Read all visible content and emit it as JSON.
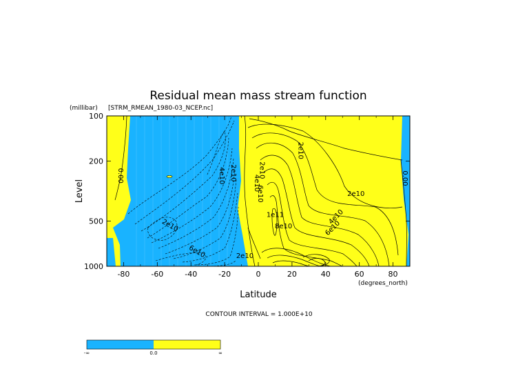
{
  "chart_data": {
    "type": "heatmap",
    "title": "Residual mean mass stream function",
    "dataset": "[STRM_RMEAN_1980-03_NCEP.nc]",
    "xlabel": "Latitude",
    "xunits": "(degrees_north)",
    "ylabel": "Level",
    "yunits": "(millibar)",
    "xlim": [
      -90,
      90
    ],
    "ylim": [
      1000,
      100
    ],
    "yscale": "log",
    "x_ticks": [
      -80,
      -60,
      -40,
      -20,
      0,
      20,
      40,
      60,
      80
    ],
    "x_tick_labels": [
      "-80",
      "-60",
      "-40",
      "-20",
      "0",
      "20",
      "40",
      "60",
      "80"
    ],
    "y_ticks": [
      100,
      200,
      500,
      1000
    ],
    "y_tick_labels": [
      "100",
      "200",
      "500",
      "1000"
    ],
    "contour_interval": "CONTOUR INTERVAL = 1.000E+10",
    "contour_labels": [
      {
        "text": "2e10",
        "lat": 24,
        "lev": 170
      },
      {
        "text": "2e10",
        "lat": 58,
        "lev": 340
      },
      {
        "text": "1e11",
        "lat": 10,
        "lev": 470
      },
      {
        "text": "4e10",
        "lat": 47,
        "lev": 480
      },
      {
        "text": "6e10",
        "lat": 45,
        "lev": 570
      },
      {
        "text": "8e10",
        "lat": 15,
        "lev": 560
      },
      {
        "text": "2e10",
        "lat": 1,
        "lev": 230
      },
      {
        "text": "4e10",
        "lat": -2,
        "lev": 280
      },
      {
        "text": "6e10",
        "lat": 0,
        "lev": 330
      },
      {
        "text": "2e10",
        "lat": -16,
        "lev": 240
      },
      {
        "text": "4e10",
        "lat": -23,
        "lev": 250
      },
      {
        "text": "2e10",
        "lat": -53,
        "lev": 550
      },
      {
        "text": "6e10",
        "lat": -37,
        "lev": 820
      },
      {
        "text": "2e10",
        "lat": -8,
        "lev": 880
      },
      {
        "text": "0.00",
        "lat": -83,
        "lev": 250
      },
      {
        "text": "0.00",
        "lat": 86,
        "lev": 260
      }
    ],
    "fill_colors": {
      "negative": "#19b3ff",
      "positive": "#ffff19"
    },
    "colorbar": {
      "tick_labels": [
        "-∞",
        "0.0",
        "∞"
      ]
    }
  }
}
